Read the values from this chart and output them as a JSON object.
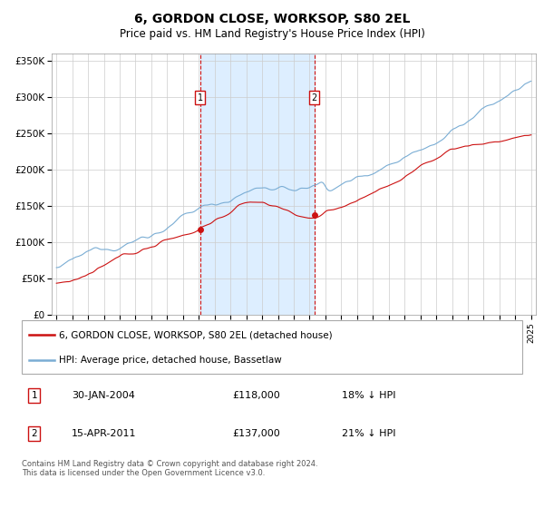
{
  "title": "6, GORDON CLOSE, WORKSOP, S80 2EL",
  "subtitle": "Price paid vs. HM Land Registry's House Price Index (HPI)",
  "legend_line1": "6, GORDON CLOSE, WORKSOP, S80 2EL (detached house)",
  "legend_line2": "HPI: Average price, detached house, Bassetlaw",
  "transaction1_date": "30-JAN-2004",
  "transaction1_price": 118000,
  "transaction1_hpi": "18% ↓ HPI",
  "transaction1_x": 2004.08,
  "transaction2_date": "15-APR-2011",
  "transaction2_price": 137000,
  "transaction2_hpi": "21% ↓ HPI",
  "transaction2_x": 2011.29,
  "footer": "Contains HM Land Registry data © Crown copyright and database right 2024.\nThis data is licensed under the Open Government Licence v3.0.",
  "ylim_min": 0,
  "ylim_max": 360000,
  "xlim_min": 1994.7,
  "xlim_max": 2025.3,
  "hpi_color": "#7aadd4",
  "price_color": "#cc1111",
  "shade_color": "#ddeeff",
  "grid_color": "#cccccc",
  "background_color": "#ffffff"
}
